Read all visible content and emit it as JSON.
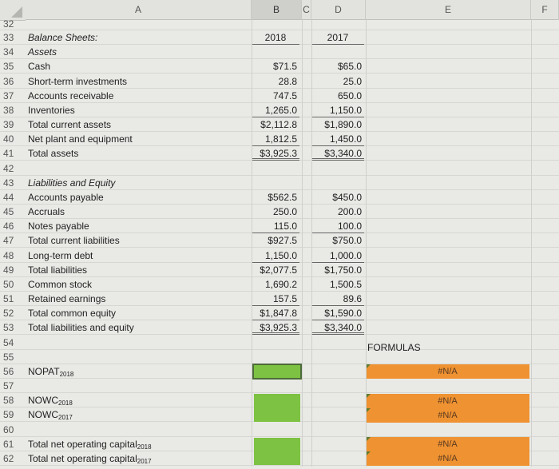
{
  "columns": [
    "A",
    "B",
    "C",
    "D",
    "E",
    "F"
  ],
  "header_row": {
    "num": "33",
    "label": "Balance Sheets:",
    "b": "2018",
    "d": "2017"
  },
  "rows": [
    {
      "num": "32",
      "label": "",
      "b": "",
      "d": ""
    },
    {
      "num": "33",
      "label": "Balance Sheets:",
      "b": "2018",
      "d": "2017",
      "style": "it",
      "bstyle": "hdr ul"
    },
    {
      "num": "34",
      "label": "Assets",
      "b": "",
      "d": "",
      "style": "it"
    },
    {
      "num": "35",
      "label": "Cash",
      "b": "$71.5",
      "d": "$65.0"
    },
    {
      "num": "36",
      "label": "Short-term investments",
      "b": "28.8",
      "d": "25.0"
    },
    {
      "num": "37",
      "label": "Accounts receivable",
      "b": "747.5",
      "d": "650.0"
    },
    {
      "num": "38",
      "label": "Inventories",
      "b": "1,265.0",
      "d": "1,150.0",
      "bstyle": "ul"
    },
    {
      "num": "39",
      "label": "Total current assets",
      "b": "$2,112.8",
      "d": "$1,890.0"
    },
    {
      "num": "40",
      "label": "Net plant and equipment",
      "b": "1,812.5",
      "d": "1,450.0",
      "bstyle": "ul"
    },
    {
      "num": "41",
      "label": "Total assets",
      "b": "$3,925.3",
      "d": "$3,340.0",
      "bstyle": "dul"
    },
    {
      "num": "42",
      "label": "",
      "b": "",
      "d": ""
    },
    {
      "num": "43",
      "label": "Liabilities and Equity",
      "b": "",
      "d": "",
      "style": "it"
    },
    {
      "num": "44",
      "label": "Accounts payable",
      "b": "$562.5",
      "d": "$450.0"
    },
    {
      "num": "45",
      "label": "Accruals",
      "b": "250.0",
      "d": "200.0"
    },
    {
      "num": "46",
      "label": "Notes payable",
      "b": "115.0",
      "d": "100.0",
      "bstyle": "ul"
    },
    {
      "num": "47",
      "label": "Total current liabilities",
      "b": "$927.5",
      "d": "$750.0"
    },
    {
      "num": "48",
      "label": "Long-term debt",
      "b": "1,150.0",
      "d": "1,000.0",
      "bstyle": "ul"
    },
    {
      "num": "49",
      "label": "Total liabilities",
      "b": "$2,077.5",
      "d": "$1,750.0"
    },
    {
      "num": "50",
      "label": "Common stock",
      "b": "1,690.2",
      "d": "1,500.5"
    },
    {
      "num": "51",
      "label": "Retained earnings",
      "b": "157.5",
      "d": "89.6",
      "bstyle": "ul"
    },
    {
      "num": "52",
      "label": "Total common equity",
      "b": "$1,847.8",
      "d": "$1,590.0",
      "bstyle": "ul"
    },
    {
      "num": "53",
      "label": "Total liabilities and equity",
      "b": "$3,925.3",
      "d": "$3,340.0",
      "bstyle": "dul"
    },
    {
      "num": "54",
      "label": "",
      "b": "",
      "d": ""
    },
    {
      "num": "55",
      "label": "",
      "b": "",
      "d": ""
    },
    {
      "num": "56",
      "label": "NOPAT",
      "sub": "2018",
      "b": "",
      "d": ""
    },
    {
      "num": "57",
      "label": "",
      "b": "",
      "d": ""
    },
    {
      "num": "58",
      "label": "NOWC",
      "sub": "2018",
      "b": "",
      "d": ""
    },
    {
      "num": "59",
      "label": "NOWC",
      "sub": "2017",
      "b": "",
      "d": ""
    },
    {
      "num": "60",
      "label": "",
      "b": "",
      "d": ""
    },
    {
      "num": "61",
      "label": "Total net operating capital",
      "sub": "2018",
      "b": "",
      "d": ""
    },
    {
      "num": "62",
      "label": "Total net operating capital",
      "sub": "2017",
      "b": "",
      "d": ""
    }
  ],
  "formulas": {
    "title": "FORMULAS",
    "groups": [
      [
        "#N/A"
      ],
      [
        "#N/A",
        "#N/A"
      ],
      [
        "#N/A",
        "#N/A"
      ]
    ]
  },
  "colors": {
    "input_green": "#7dc242",
    "formula_orange": "#ef9231"
  }
}
